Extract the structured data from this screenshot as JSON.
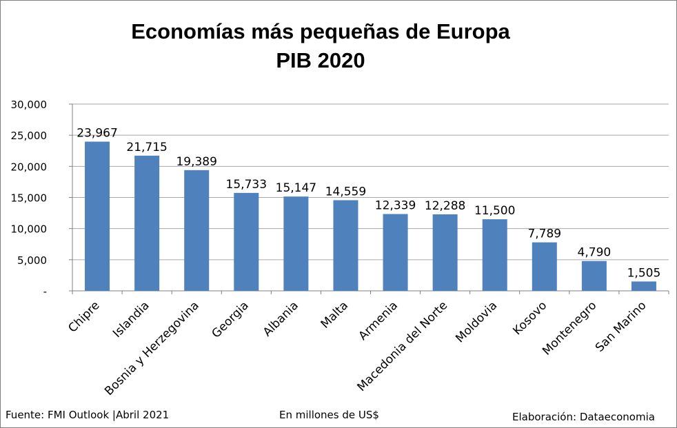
{
  "chart_data": {
    "type": "bar",
    "title": "Economías más pequeñas de Europa",
    "subtitle": "PIB 2020",
    "categories": [
      "Chipre",
      "Islandia",
      "Bosnia y Herzegovina",
      "Georgia",
      "Albania",
      "Malta",
      "Armenia",
      "Macedonia del Norte",
      "Moldovia",
      "Kosovo",
      "Montenegro",
      "San Marino"
    ],
    "values": [
      23967,
      21715,
      19389,
      15733,
      15147,
      14559,
      12339,
      12288,
      11500,
      7789,
      4790,
      1505
    ],
    "value_labels": [
      "23,967",
      "21,715",
      "19,389",
      "15,733",
      "15,147",
      "14,559",
      "12,339",
      "12,288",
      "11,500",
      "7,789",
      "4,790",
      "1,505"
    ],
    "ylim": [
      0,
      30000
    ],
    "yticks": [
      0,
      5000,
      10000,
      15000,
      20000,
      25000,
      30000
    ],
    "ytick_labels": [
      "-",
      "5,000",
      "10,000",
      "15,000",
      "20,000",
      "25,000",
      "30,000"
    ],
    "grid": true,
    "bar_color": "#4f81bd"
  },
  "footer": {
    "source": "Fuente: FMI Outlook |Abril 2021",
    "units": "En millones de US$",
    "credit": "Elaboración: Dataeconomia"
  }
}
